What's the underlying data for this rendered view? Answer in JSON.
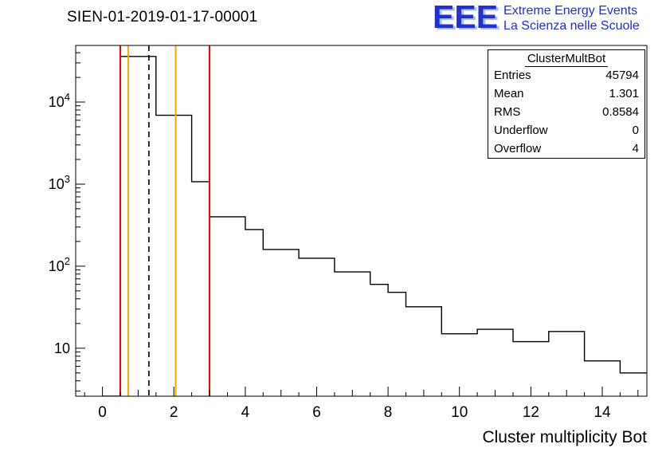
{
  "title": "SIEN-01-2019-01-17-00001",
  "logo": {
    "eee": "EEE",
    "line1": "Extreme Energy Events",
    "line2": "La Scienza nelle Scuole",
    "color": "#2230cc",
    "shadow_color": "#a9c2ec"
  },
  "stats": {
    "title": "ClusterMultBot",
    "rows": [
      {
        "label": "Entries",
        "value": "45794"
      },
      {
        "label": "Mean",
        "value": "1.301"
      },
      {
        "label": "RMS",
        "value": "0.8584"
      },
      {
        "label": "Underflow",
        "value": "0"
      },
      {
        "label": "Overflow",
        "value": "4"
      }
    ]
  },
  "chart_data": {
    "type": "bar",
    "subtype": "step-histogram",
    "title": "SIEN-01-2019-01-17-00001",
    "xlabel": "Cluster multiplicity Bot",
    "ylabel": "",
    "y_scale": "log",
    "grid": false,
    "xlim": [
      -0.75,
      15.25
    ],
    "ylim": [
      2.6,
      49000
    ],
    "bin_start": 0,
    "bin_width": 0.5,
    "counts": [
      0,
      36000,
      36000,
      6900,
      6900,
      1070,
      400,
      400,
      280,
      160,
      160,
      125,
      125,
      85,
      85,
      60,
      48,
      32,
      32,
      15,
      15,
      17,
      17,
      12,
      12,
      16,
      16,
      7,
      7,
      5,
      5
    ],
    "line_color": "#000000",
    "x_ticks": [
      {
        "value": 0,
        "label": "0"
      },
      {
        "value": 2,
        "label": "2"
      },
      {
        "value": 4,
        "label": "4"
      },
      {
        "value": 6,
        "label": "6"
      },
      {
        "value": 8,
        "label": "8"
      },
      {
        "value": 10,
        "label": "10"
      },
      {
        "value": 12,
        "label": "12"
      },
      {
        "value": 14,
        "label": "14"
      }
    ],
    "y_ticks": [
      {
        "value": 10,
        "label": "10",
        "exp": ""
      },
      {
        "value": 100,
        "label": "10",
        "exp": "2"
      },
      {
        "value": 1000,
        "label": "10",
        "exp": "3"
      },
      {
        "value": 10000,
        "label": "10",
        "exp": "4"
      }
    ],
    "marker_lines": [
      {
        "x": 0.5,
        "color": "#ff0000",
        "style": "solid",
        "name": "red-marker-low"
      },
      {
        "x": 0.72,
        "color": "#ffa500",
        "style": "solid",
        "name": "orange-marker-low"
      },
      {
        "x": 1.3,
        "color": "#000000",
        "style": "dashed",
        "name": "mean-dashed-marker"
      },
      {
        "x": 2.05,
        "color": "#ffa500",
        "style": "solid",
        "name": "orange-marker-high"
      },
      {
        "x": 3.0,
        "color": "#ff0000",
        "style": "solid",
        "name": "red-marker-high"
      }
    ]
  }
}
